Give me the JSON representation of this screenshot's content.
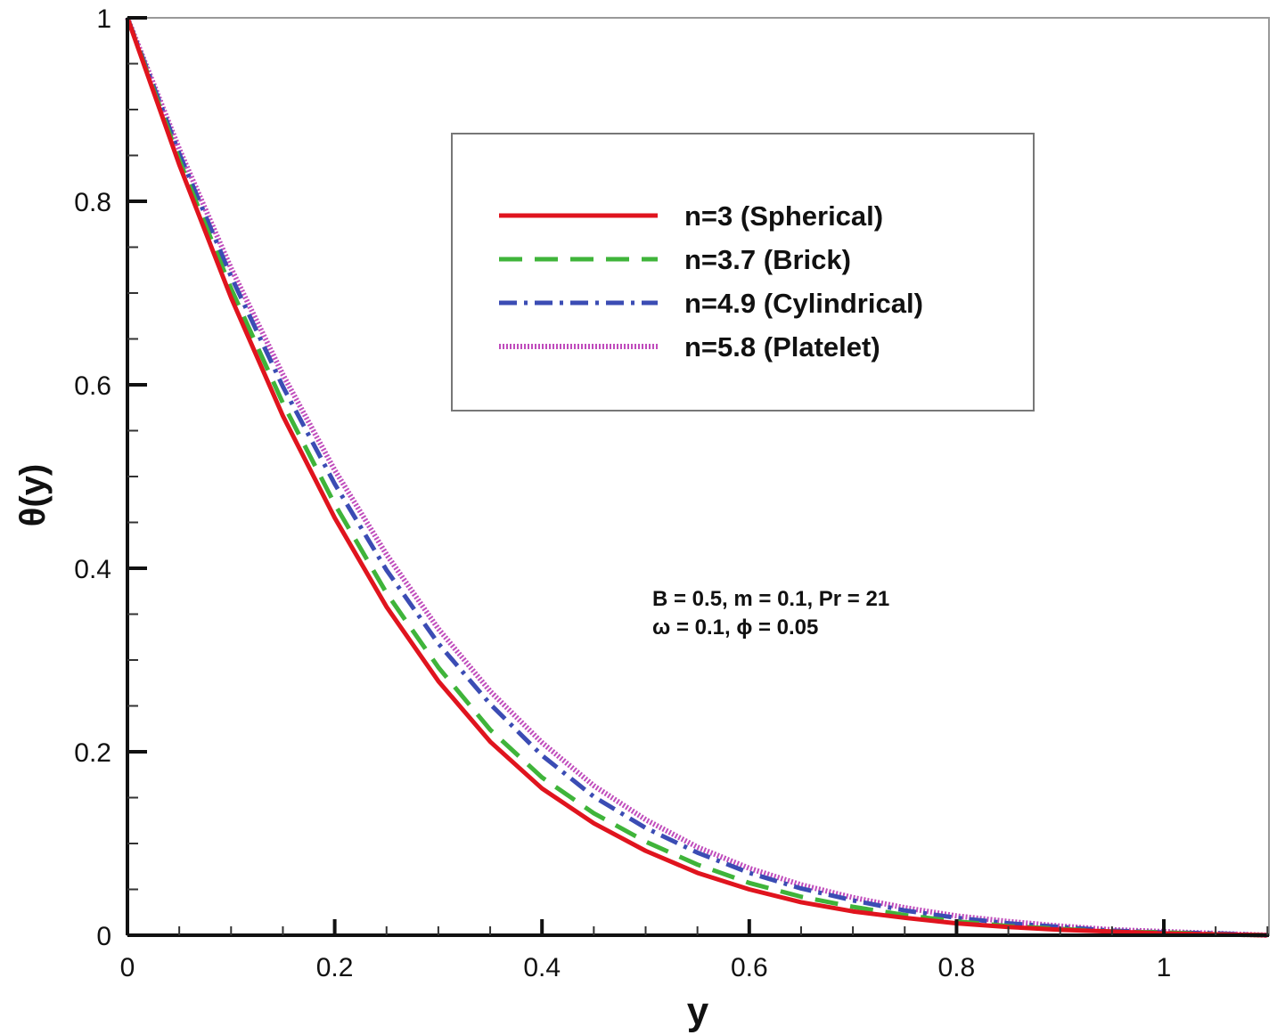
{
  "chart_data": {
    "type": "line",
    "title": "",
    "xlabel": "y",
    "ylabel": "θ(y)",
    "xlim": [
      0,
      1.1
    ],
    "ylim": [
      0,
      1
    ],
    "xticks": [
      0,
      0.2,
      0.4,
      0.6,
      0.8,
      1
    ],
    "xtick_labels": [
      "0",
      "0.2",
      "0.4",
      "0.6",
      "0.8",
      "1"
    ],
    "yticks": [
      0,
      0.2,
      0.4,
      0.6,
      0.8,
      1
    ],
    "ytick_labels": [
      "0",
      "0.2",
      "0.4",
      "0.6",
      "0.8",
      "1"
    ],
    "grid": false,
    "legend_position": "top-right",
    "x": [
      0,
      0.05,
      0.1,
      0.15,
      0.2,
      0.25,
      0.3,
      0.35,
      0.4,
      0.45,
      0.5,
      0.55,
      0.6,
      0.65,
      0.7,
      0.75,
      0.8,
      0.85,
      0.9,
      0.95,
      1.0,
      1.05,
      1.1
    ],
    "series": [
      {
        "name": "n=3 (Spherical)",
        "color": "#e0141e",
        "dash": "solid",
        "values": [
          1.0,
          0.84,
          0.695,
          0.566,
          0.455,
          0.358,
          0.277,
          0.211,
          0.16,
          0.122,
          0.092,
          0.068,
          0.05,
          0.036,
          0.026,
          0.019,
          0.013,
          0.009,
          0.006,
          0.004,
          0.002,
          0.001,
          0.0
        ]
      },
      {
        "name": "n=3.7 (Brick)",
        "color": "#3fb43a",
        "dash": "dashed",
        "values": [
          1.0,
          0.845,
          0.705,
          0.58,
          0.47,
          0.373,
          0.292,
          0.224,
          0.172,
          0.133,
          0.102,
          0.077,
          0.057,
          0.042,
          0.031,
          0.022,
          0.015,
          0.01,
          0.007,
          0.004,
          0.003,
          0.001,
          0.0
        ]
      },
      {
        "name": "n=4.9 (Cylindrical)",
        "color": "#3b4cb4",
        "dash": "dashdot",
        "values": [
          1.0,
          0.852,
          0.718,
          0.598,
          0.492,
          0.398,
          0.318,
          0.252,
          0.196,
          0.151,
          0.117,
          0.09,
          0.068,
          0.051,
          0.038,
          0.027,
          0.019,
          0.013,
          0.009,
          0.005,
          0.003,
          0.002,
          0.0
        ]
      },
      {
        "name": "n=5.8 (Platelet)",
        "color": "#c04cbc",
        "dash": "dotted",
        "values": [
          1.0,
          0.857,
          0.727,
          0.611,
          0.507,
          0.415,
          0.334,
          0.266,
          0.21,
          0.163,
          0.126,
          0.096,
          0.073,
          0.055,
          0.041,
          0.03,
          0.021,
          0.015,
          0.01,
          0.006,
          0.004,
          0.002,
          0.0
        ]
      }
    ],
    "annotations": [
      "B = 0.5, m = 0.1, Pr = 21",
      "ω = 0.1, ϕ = 0.05"
    ]
  }
}
